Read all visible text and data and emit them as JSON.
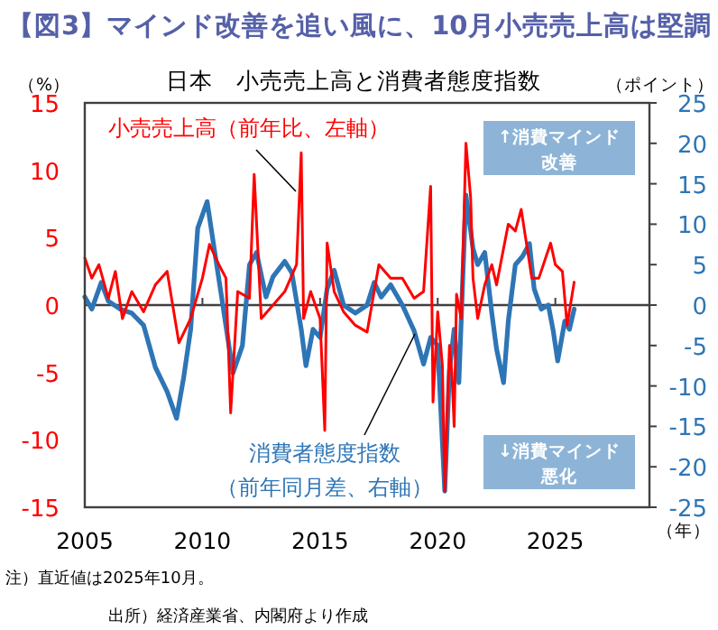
{
  "chart_data": {
    "type": "line",
    "title": "【図3】マインド改善を追い風に、10月小売売上高は堅調",
    "subtitle": "日本　小売売上高と消費者態度指数",
    "xlabel": "（年）",
    "ylabel": "（%）",
    "y2label": "（ポイント）",
    "annotations": [
      "↑消費マインド改善",
      "↓消費マインド悪化",
      "注）直近値は2025年10月。",
      "出所）経済産業省、内閣府より作成"
    ],
    "xlim": [
      2005,
      2029
    ],
    "xticks": [
      2005,
      2010,
      2015,
      2020,
      2025
    ],
    "ylim": [
      -15,
      15
    ],
    "yticks": [
      -15,
      -10,
      -5,
      0,
      5,
      10,
      15
    ],
    "y2lim": [
      -25,
      25
    ],
    "y2ticks": [
      -25,
      -20,
      -15,
      -10,
      -5,
      0,
      5,
      10,
      15,
      20,
      25
    ],
    "ref_lines": [
      {
        "axis": "y",
        "value": 0,
        "color": "#404040"
      }
    ],
    "series": [
      {
        "name": "消費者態度指数（前年同月差、右軸）",
        "color": "#2e75b6",
        "axis": "y2",
        "x": [
          2005.0,
          2005.3,
          2005.7,
          2006.0,
          2006.5,
          2007.0,
          2007.5,
          2008.0,
          2008.5,
          2008.9,
          2009.2,
          2009.5,
          2009.8,
          2010.2,
          2010.5,
          2010.8,
          2011.3,
          2011.7,
          2012.0,
          2012.3,
          2012.7,
          2013.0,
          2013.5,
          2013.8,
          2014.2,
          2014.4,
          2014.7,
          2015.0,
          2015.3,
          2015.6,
          2016.0,
          2016.5,
          2017.0,
          2017.3,
          2017.6,
          2018.0,
          2018.5,
          2019.0,
          2019.4,
          2019.7,
          2020.0,
          2020.3,
          2020.5,
          2020.7,
          2020.9,
          2021.2,
          2021.5,
          2021.7,
          2022.0,
          2022.3,
          2022.5,
          2022.8,
          2023.0,
          2023.3,
          2023.6,
          2023.9,
          2024.1,
          2024.4,
          2024.7,
          2024.9,
          2025.1,
          2025.4,
          2025.6,
          2025.8
        ],
        "values": [
          1,
          -0.5,
          2.8,
          0.5,
          -0.5,
          -1,
          -2.5,
          -7.7,
          -10.7,
          -14,
          -9,
          -3,
          9.5,
          12.8,
          7,
          1.3,
          -8.4,
          -5,
          5,
          6.5,
          1,
          3.5,
          5.4,
          4,
          -3,
          -7.5,
          -3,
          -4,
          2,
          4.3,
          0,
          -1,
          0,
          2.8,
          1,
          2.5,
          0,
          -3.2,
          -7.3,
          -4,
          -5,
          -23,
          -8,
          -3,
          -9.6,
          13.6,
          7,
          5,
          6.5,
          -1,
          -5.4,
          -9.6,
          -2,
          5,
          6,
          7.6,
          2,
          -0.5,
          0,
          -3,
          -6.9,
          -2,
          -3,
          -0.5
        ]
      },
      {
        "name": "小売売上高（前年比、左軸）",
        "color": "#ff0000",
        "x": [
          2005.0,
          2005.3,
          2005.6,
          2006.0,
          2006.3,
          2006.6,
          2007.0,
          2007.5,
          2008.0,
          2008.5,
          2009.0,
          2009.5,
          2010.0,
          2010.3,
          2010.7,
          2011.0,
          2011.2,
          2011.5,
          2012.0,
          2012.2,
          2012.5,
          2013.0,
          2013.5,
          2014.0,
          2014.2,
          2014.3,
          2014.6,
          2015.0,
          2015.2,
          2015.3,
          2015.6,
          2016.0,
          2016.5,
          2017.0,
          2017.5,
          2018.0,
          2018.5,
          2019.0,
          2019.4,
          2019.7,
          2019.8,
          2020.0,
          2020.2,
          2020.3,
          2020.5,
          2020.6,
          2020.7,
          2020.8,
          2021.0,
          2021.2,
          2021.4,
          2021.5,
          2021.7,
          2022.0,
          2022.3,
          2022.5,
          2023.0,
          2023.3,
          2023.55,
          2024.0,
          2024.3,
          2024.8,
          2025.0,
          2025.3,
          2025.5,
          2025.8
        ],
        "values": [
          3.5,
          2,
          3,
          0.5,
          2.5,
          -1,
          1,
          -0.5,
          1.5,
          2.5,
          -2.8,
          -1,
          2,
          4.5,
          3,
          2,
          -8,
          1,
          0.5,
          9.7,
          -1,
          0,
          1,
          3,
          11.3,
          -1,
          1,
          -1,
          -9.3,
          4.6,
          1,
          -0.5,
          -1.5,
          -2,
          3,
          2,
          2,
          0.5,
          1,
          8.8,
          -7.2,
          -0.5,
          -4.5,
          -13.8,
          -3,
          -5,
          -9,
          0.8,
          -1,
          12,
          8,
          2,
          -1,
          1.5,
          3,
          1.5,
          6,
          5.5,
          7.1,
          2,
          2,
          4.6,
          3,
          2.5,
          -1.5,
          1.7
        ]
      }
    ]
  }
}
